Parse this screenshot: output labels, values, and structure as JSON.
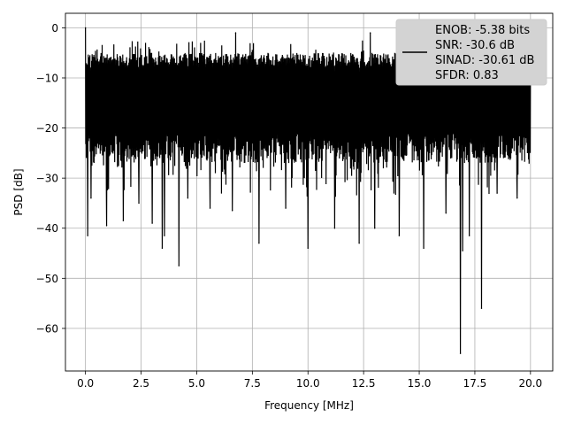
{
  "chart_data": {
    "type": "line",
    "xlabel": "Frequency [MHz]",
    "ylabel": "PSD [dB]",
    "xlim": [
      -0.9,
      21.0
    ],
    "ylim": [
      -68.5,
      2.9
    ],
    "xticks": [
      0.0,
      2.5,
      5.0,
      7.5,
      10.0,
      12.5,
      15.0,
      17.5,
      20.0
    ],
    "xtick_labels": [
      "0.0",
      "2.5",
      "5.0",
      "7.5",
      "10.0",
      "12.5",
      "15.0",
      "17.5",
      "20.0"
    ],
    "yticks": [
      0,
      -10,
      -20,
      -30,
      -40,
      -50,
      -60
    ],
    "ytick_labels": [
      "0",
      "−10",
      "−20",
      "−30",
      "−40",
      "−50",
      "−60"
    ],
    "grid": true,
    "legend_position": "top-right",
    "legend_lines": [
      "ENOB: -5.38 bits",
      "SNR: -30.6 dB",
      "SINAD: -30.61 dB",
      "SFDR: 0.83"
    ],
    "line_color": "#000000",
    "series": [
      {
        "x_range": [
          0.0,
          20.0
        ],
        "band_upper_typical": -5,
        "band_lower_typical": -27,
        "notable_points": [
          {
            "x": 0.0,
            "y": 0.0
          },
          {
            "x": 0.1,
            "y": -41.5
          },
          {
            "x": 0.25,
            "y": -34
          },
          {
            "x": 0.95,
            "y": -39.5
          },
          {
            "x": 1.7,
            "y": -38.5
          },
          {
            "x": 2.4,
            "y": -35
          },
          {
            "x": 3.0,
            "y": -39
          },
          {
            "x": 3.45,
            "y": -44
          },
          {
            "x": 3.55,
            "y": -41.5
          },
          {
            "x": 4.2,
            "y": -47.5
          },
          {
            "x": 4.6,
            "y": -34
          },
          {
            "x": 5.6,
            "y": -36
          },
          {
            "x": 6.6,
            "y": -36.5
          },
          {
            "x": 6.75,
            "y": -1
          },
          {
            "x": 7.8,
            "y": -43
          },
          {
            "x": 9.0,
            "y": -36
          },
          {
            "x": 10.0,
            "y": -44
          },
          {
            "x": 11.2,
            "y": -40
          },
          {
            "x": 12.3,
            "y": -43
          },
          {
            "x": 12.8,
            "y": -1
          },
          {
            "x": 13.0,
            "y": -40
          },
          {
            "x": 14.1,
            "y": -41.5
          },
          {
            "x": 15.2,
            "y": -44
          },
          {
            "x": 16.2,
            "y": -37
          },
          {
            "x": 16.85,
            "y": -65
          },
          {
            "x": 16.95,
            "y": -44.5
          },
          {
            "x": 17.25,
            "y": -41.5
          },
          {
            "x": 17.8,
            "y": -56
          },
          {
            "x": 18.5,
            "y": -33
          },
          {
            "x": 19.4,
            "y": -34
          }
        ]
      }
    ]
  }
}
